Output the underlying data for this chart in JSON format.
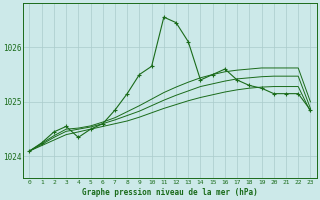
{
  "title": "Graphe pression niveau de la mer (hPa)",
  "bg_color": "#cce9e9",
  "grid_color": "#aacccc",
  "line_color": "#1a6b1a",
  "x_labels": [
    "0",
    "1",
    "2",
    "3",
    "4",
    "5",
    "6",
    "7",
    "8",
    "9",
    "10",
    "11",
    "12",
    "13",
    "14",
    "15",
    "16",
    "17",
    "18",
    "19",
    "20",
    "21",
    "22",
    "23"
  ],
  "xlim": [
    -0.5,
    23.5
  ],
  "ylim": [
    1023.6,
    1026.8
  ],
  "yticks": [
    1024,
    1025,
    1026
  ],
  "series1": [
    1024.1,
    1024.25,
    1024.45,
    1024.55,
    1024.35,
    1024.5,
    1024.6,
    1024.85,
    1025.15,
    1025.5,
    1025.65,
    1026.55,
    1026.45,
    1026.1,
    1025.4,
    1025.5,
    1025.6,
    1025.4,
    1025.3,
    1025.25,
    1025.15,
    1025.15,
    1025.15,
    1024.85
  ],
  "series2": [
    1024.1,
    1024.2,
    1024.3,
    1024.4,
    1024.45,
    1024.5,
    1024.55,
    1024.6,
    1024.65,
    1024.72,
    1024.8,
    1024.88,
    1024.95,
    1025.02,
    1025.08,
    1025.13,
    1025.18,
    1025.22,
    1025.25,
    1025.27,
    1025.28,
    1025.28,
    1025.28,
    1024.82
  ],
  "series3": [
    1024.1,
    1024.22,
    1024.35,
    1024.46,
    1024.5,
    1024.54,
    1024.6,
    1024.67,
    1024.75,
    1024.83,
    1024.93,
    1025.03,
    1025.12,
    1025.2,
    1025.28,
    1025.33,
    1025.38,
    1025.42,
    1025.44,
    1025.46,
    1025.47,
    1025.47,
    1025.47,
    1024.88
  ],
  "series4": [
    1024.1,
    1024.24,
    1024.38,
    1024.5,
    1024.52,
    1024.56,
    1024.63,
    1024.71,
    1024.82,
    1024.93,
    1025.05,
    1025.17,
    1025.27,
    1025.36,
    1025.44,
    1025.5,
    1025.55,
    1025.58,
    1025.6,
    1025.62,
    1025.62,
    1025.62,
    1025.62,
    1025.0
  ]
}
